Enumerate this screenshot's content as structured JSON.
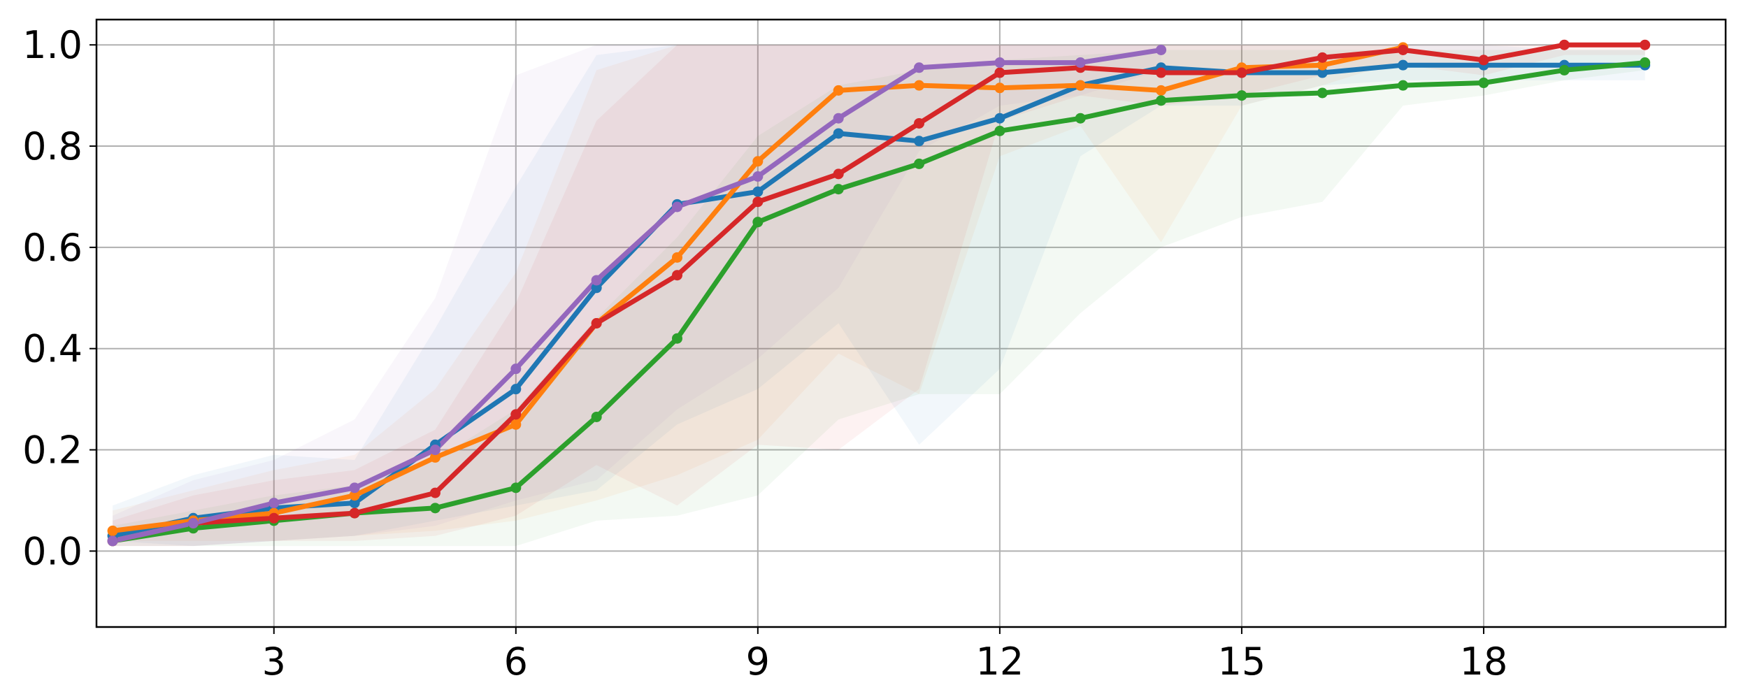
{
  "chart_data": {
    "type": "line",
    "title": "",
    "xlabel": "",
    "ylabel": "",
    "xlim": [
      0.8,
      21.0
    ],
    "ylim": [
      -0.15,
      1.05
    ],
    "xticks": [
      3,
      6,
      9,
      12,
      15,
      18
    ],
    "yticks": [
      0.0,
      0.2,
      0.4,
      0.6,
      0.8,
      1.0
    ],
    "xtick_labels": [
      "3",
      "6",
      "9",
      "12",
      "15",
      "18"
    ],
    "ytick_labels": [
      "0.0",
      "0.2",
      "0.4",
      "0.6",
      "0.8",
      "1.0"
    ],
    "grid": true,
    "legend": false,
    "series": [
      {
        "color": "#1f77b4",
        "x": [
          1,
          2,
          3,
          4,
          5,
          6,
          7,
          8,
          9,
          10,
          11,
          12,
          13,
          14,
          15,
          16,
          17,
          18,
          19,
          20
        ],
        "y": [
          0.03,
          0.065,
          0.085,
          0.095,
          0.21,
          0.32,
          0.52,
          0.685,
          0.71,
          0.825,
          0.81,
          0.855,
          0.92,
          0.955,
          0.945,
          0.945,
          0.96,
          0.96,
          0.96,
          0.96
        ],
        "lower": [
          0.02,
          0.01,
          0.02,
          0.03,
          0.06,
          0.09,
          0.12,
          0.25,
          0.32,
          0.45,
          0.21,
          0.36,
          0.78,
          0.88,
          0.88,
          0.92,
          0.93,
          0.93,
          0.93,
          0.93
        ],
        "upper": [
          0.09,
          0.15,
          0.19,
          0.18,
          0.44,
          0.72,
          0.98,
          1.0,
          1.0,
          1.0,
          1.0,
          1.0,
          1.0,
          1.0,
          1.0,
          1.0,
          1.0,
          1.0,
          0.99,
          0.99
        ]
      },
      {
        "color": "#ff7f0e",
        "x": [
          1,
          2,
          3,
          4,
          5,
          6,
          7,
          8,
          9,
          10,
          11,
          12,
          13,
          14,
          15,
          16,
          17
        ],
        "y": [
          0.04,
          0.06,
          0.075,
          0.11,
          0.185,
          0.25,
          0.45,
          0.58,
          0.77,
          0.91,
          0.92,
          0.915,
          0.92,
          0.91,
          0.955,
          0.96,
          0.995
        ],
        "lower": [
          0.02,
          0.02,
          0.02,
          0.03,
          0.04,
          0.06,
          0.1,
          0.15,
          0.22,
          0.39,
          0.31,
          0.78,
          0.84,
          0.61,
          0.88,
          0.92,
          0.97
        ],
        "upper": [
          0.08,
          0.12,
          0.16,
          0.19,
          0.32,
          0.55,
          0.95,
          1.0,
          1.0,
          1.0,
          1.0,
          1.0,
          1.0,
          1.0,
          1.0,
          1.0,
          1.0
        ]
      },
      {
        "color": "#2ca02c",
        "x": [
          1,
          2,
          3,
          4,
          5,
          6,
          7,
          8,
          9,
          10,
          11,
          12,
          13,
          14,
          15,
          16,
          17,
          18,
          19,
          20
        ],
        "y": [
          0.02,
          0.045,
          0.06,
          0.075,
          0.085,
          0.125,
          0.265,
          0.42,
          0.65,
          0.715,
          0.765,
          0.83,
          0.855,
          0.89,
          0.9,
          0.905,
          0.92,
          0.925,
          0.95,
          0.965
        ],
        "lower": [
          0.01,
          0.01,
          0.01,
          0.01,
          0.01,
          0.01,
          0.06,
          0.07,
          0.11,
          0.26,
          0.31,
          0.31,
          0.47,
          0.6,
          0.66,
          0.69,
          0.88,
          0.9,
          0.93,
          0.95
        ],
        "upper": [
          0.05,
          0.08,
          0.11,
          0.13,
          0.18,
          0.28,
          0.46,
          0.62,
          0.82,
          0.92,
          0.95,
          0.97,
          0.98,
          0.99,
          0.99,
          0.99,
          0.99,
          0.99,
          0.99,
          0.99
        ]
      },
      {
        "color": "#d62728",
        "x": [
          1,
          2,
          3,
          4,
          5,
          6,
          7,
          8,
          9,
          10,
          11,
          12,
          13,
          14,
          15,
          16,
          17,
          18,
          19,
          20
        ],
        "y": [
          0.02,
          0.055,
          0.065,
          0.075,
          0.115,
          0.27,
          0.45,
          0.545,
          0.69,
          0.745,
          0.845,
          0.945,
          0.955,
          0.945,
          0.945,
          0.975,
          0.99,
          0.97,
          1.0,
          1.0
        ],
        "lower": [
          0.01,
          0.01,
          0.02,
          0.02,
          0.03,
          0.07,
          0.17,
          0.09,
          0.21,
          0.2,
          0.32,
          0.85,
          0.9,
          0.88,
          0.9,
          0.94,
          0.96,
          0.94,
          0.98,
          0.98
        ],
        "upper": [
          0.06,
          0.11,
          0.14,
          0.16,
          0.24,
          0.49,
          0.85,
          1.0,
          1.0,
          1.0,
          1.0,
          1.0,
          1.0,
          1.0,
          1.0,
          1.0,
          1.0,
          1.0,
          1.0,
          1.0
        ]
      },
      {
        "color": "#9467bd",
        "x": [
          1,
          2,
          3,
          4,
          5,
          6,
          7,
          8,
          9,
          10,
          11,
          12,
          13,
          14
        ],
        "y": [
          0.02,
          0.055,
          0.095,
          0.125,
          0.2,
          0.36,
          0.535,
          0.68,
          0.74,
          0.855,
          0.955,
          0.965,
          0.965,
          0.99
        ],
        "lower": [
          0.01,
          0.01,
          0.02,
          0.03,
          0.05,
          0.1,
          0.14,
          0.28,
          0.38,
          0.52,
          0.79,
          0.88,
          0.9,
          0.95
        ],
        "upper": [
          0.07,
          0.14,
          0.18,
          0.26,
          0.5,
          0.94,
          1.0,
          1.0,
          1.0,
          1.0,
          1.0,
          1.0,
          1.0,
          1.0
        ]
      }
    ]
  }
}
